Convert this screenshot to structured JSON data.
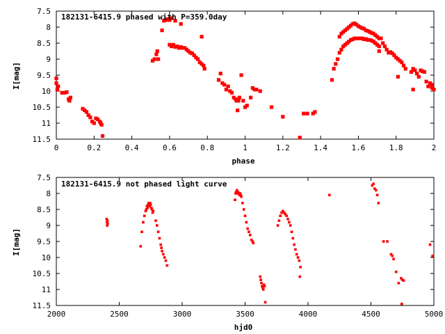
{
  "chart_data": [
    {
      "type": "scatter",
      "title": "182131-6415.9 phased with P=359.0day",
      "xlabel": "phase",
      "ylabel": "I[mag]",
      "xlim": [
        0,
        2
      ],
      "ylim": [
        11.5,
        7.5
      ],
      "y_inverted": true,
      "grid": false,
      "legend": "none",
      "marker_color": "#ff0000",
      "x_ticks": [
        "0",
        "0.2",
        "0.4",
        "0.6",
        "0.8",
        "1",
        "1.2",
        "1.4",
        "1.6",
        "1.8",
        "2"
      ],
      "y_ticks": [
        "7.5",
        "8",
        "8.5",
        "9",
        "9.5",
        "10",
        "10.5",
        "11",
        "11.5"
      ],
      "points": [
        [
          0.0,
          9.6
        ],
        [
          0.0,
          9.75
        ],
        [
          0.005,
          9.95
        ],
        [
          0.01,
          9.85
        ],
        [
          0.03,
          10.05
        ],
        [
          0.045,
          10.05
        ],
        [
          0.055,
          10.03
        ],
        [
          0.065,
          10.25
        ],
        [
          0.07,
          10.3
        ],
        [
          0.075,
          10.2
        ],
        [
          0.14,
          10.55
        ],
        [
          0.15,
          10.6
        ],
        [
          0.16,
          10.65
        ],
        [
          0.17,
          10.75
        ],
        [
          0.18,
          10.82
        ],
        [
          0.19,
          10.95
        ],
        [
          0.2,
          11.0
        ],
        [
          0.21,
          10.85
        ],
        [
          0.22,
          10.88
        ],
        [
          0.23,
          10.95
        ],
        [
          0.235,
          11.0
        ],
        [
          0.24,
          11.05
        ],
        [
          0.245,
          11.4
        ],
        [
          0.51,
          9.05
        ],
        [
          0.52,
          9.0
        ],
        [
          0.53,
          8.85
        ],
        [
          0.535,
          8.75
        ],
        [
          0.54,
          9.0
        ],
        [
          0.56,
          8.1
        ],
        [
          0.57,
          7.8
        ],
        [
          0.58,
          7.78
        ],
        [
          0.59,
          7.75
        ],
        [
          0.6,
          7.78
        ],
        [
          0.61,
          7.72
        ],
        [
          0.63,
          7.8
        ],
        [
          0.6,
          8.55
        ],
        [
          0.61,
          8.6
        ],
        [
          0.62,
          8.55
        ],
        [
          0.63,
          8.62
        ],
        [
          0.64,
          8.6
        ],
        [
          0.65,
          8.65
        ],
        [
          0.66,
          8.62
        ],
        [
          0.67,
          8.65
        ],
        [
          0.68,
          8.65
        ],
        [
          0.69,
          8.7
        ],
        [
          0.7,
          8.75
        ],
        [
          0.71,
          8.8
        ],
        [
          0.72,
          8.82
        ],
        [
          0.73,
          8.88
        ],
        [
          0.74,
          8.95
        ],
        [
          0.75,
          9.0
        ],
        [
          0.76,
          9.1
        ],
        [
          0.77,
          9.15
        ],
        [
          0.78,
          9.2
        ],
        [
          0.785,
          9.3
        ],
        [
          0.77,
          8.3
        ],
        [
          0.66,
          7.9
        ],
        [
          0.86,
          9.65
        ],
        [
          0.87,
          9.45
        ],
        [
          0.88,
          9.75
        ],
        [
          0.89,
          9.8
        ],
        [
          0.9,
          9.95
        ],
        [
          0.91,
          9.85
        ],
        [
          0.92,
          10.0
        ],
        [
          0.93,
          10.05
        ],
        [
          0.94,
          10.2
        ],
        [
          0.95,
          10.25
        ],
        [
          0.955,
          10.3
        ],
        [
          0.96,
          10.6
        ],
        [
          0.965,
          10.3
        ],
        [
          0.97,
          10.2
        ],
        [
          0.98,
          9.5
        ],
        [
          0.99,
          10.3
        ],
        [
          1.0,
          10.5
        ],
        [
          1.01,
          10.45
        ],
        [
          1.03,
          10.2
        ],
        [
          1.04,
          9.9
        ],
        [
          1.05,
          9.95
        ],
        [
          1.06,
          9.95
        ],
        [
          1.08,
          10.0
        ],
        [
          1.14,
          10.5
        ],
        [
          1.2,
          10.8
        ],
        [
          1.29,
          11.45
        ],
        [
          1.31,
          10.7
        ],
        [
          1.33,
          10.7
        ],
        [
          1.36,
          10.7
        ],
        [
          1.37,
          10.65
        ],
        [
          1.46,
          9.65
        ],
        [
          1.47,
          9.3
        ],
        [
          1.48,
          9.15
        ],
        [
          1.49,
          9.0
        ],
        [
          1.5,
          8.8
        ],
        [
          1.51,
          8.7
        ],
        [
          1.52,
          8.6
        ],
        [
          1.53,
          8.55
        ],
        [
          1.54,
          8.5
        ],
        [
          1.55,
          8.45
        ],
        [
          1.56,
          8.4
        ],
        [
          1.57,
          8.38
        ],
        [
          1.58,
          8.35
        ],
        [
          1.59,
          8.35
        ],
        [
          1.6,
          8.35
        ],
        [
          1.61,
          8.35
        ],
        [
          1.62,
          8.35
        ],
        [
          1.63,
          8.38
        ],
        [
          1.64,
          8.37
        ],
        [
          1.65,
          8.4
        ],
        [
          1.66,
          8.4
        ],
        [
          1.67,
          8.42
        ],
        [
          1.68,
          8.45
        ],
        [
          1.69,
          8.5
        ],
        [
          1.7,
          8.55
        ],
        [
          1.71,
          8.6
        ],
        [
          1.5,
          8.3
        ],
        [
          1.51,
          8.2
        ],
        [
          1.52,
          8.15
        ],
        [
          1.53,
          8.1
        ],
        [
          1.54,
          8.05
        ],
        [
          1.55,
          8.0
        ],
        [
          1.56,
          7.95
        ],
        [
          1.57,
          7.9
        ],
        [
          1.58,
          7.88
        ],
        [
          1.59,
          7.92
        ],
        [
          1.6,
          7.97
        ],
        [
          1.61,
          8.0
        ],
        [
          1.62,
          8.03
        ],
        [
          1.63,
          8.05
        ],
        [
          1.64,
          8.1
        ],
        [
          1.65,
          8.12
        ],
        [
          1.66,
          8.15
        ],
        [
          1.67,
          8.18
        ],
        [
          1.68,
          8.2
        ],
        [
          1.69,
          8.25
        ],
        [
          1.7,
          8.3
        ],
        [
          1.71,
          8.35
        ],
        [
          1.72,
          8.35
        ],
        [
          1.73,
          8.5
        ],
        [
          1.74,
          8.6
        ],
        [
          1.75,
          8.7
        ],
        [
          1.76,
          8.8
        ],
        [
          1.77,
          8.78
        ],
        [
          1.78,
          8.82
        ],
        [
          1.79,
          8.88
        ],
        [
          1.8,
          8.95
        ],
        [
          1.81,
          9.0
        ],
        [
          1.82,
          9.05
        ],
        [
          1.83,
          9.1
        ],
        [
          1.84,
          9.2
        ],
        [
          1.85,
          9.3
        ],
        [
          1.81,
          9.55
        ],
        [
          1.88,
          9.4
        ],
        [
          1.89,
          9.3
        ],
        [
          1.9,
          9.35
        ],
        [
          1.91,
          9.45
        ],
        [
          1.92,
          9.55
        ],
        [
          1.93,
          9.35
        ],
        [
          1.94,
          9.38
        ],
        [
          1.95,
          9.4
        ],
        [
          1.96,
          9.7
        ],
        [
          1.97,
          9.85
        ],
        [
          1.98,
          9.75
        ],
        [
          1.99,
          9.8
        ],
        [
          2.0,
          9.95
        ],
        [
          1.99,
          9.9
        ],
        [
          1.89,
          9.95
        ],
        [
          1.71,
          8.75
        ]
      ]
    },
    {
      "type": "scatter",
      "title": "182131-6415.9 not phased light curve",
      "xlabel": "hjd0",
      "ylabel": "I[mag]",
      "xlim": [
        2000,
        5000
      ],
      "ylim": [
        11.5,
        7.5
      ],
      "y_inverted": true,
      "grid": false,
      "legend": "none",
      "marker_color": "#ff0000",
      "x_ticks": [
        "2000",
        "2500",
        "3000",
        "3500",
        "4000",
        "4500",
        "5000"
      ],
      "y_ticks": [
        "7.5",
        "8",
        "8.5",
        "9",
        "9.5",
        "10",
        "10.5",
        "11",
        "11.5"
      ],
      "points": [
        [
          2400,
          8.8
        ],
        [
          2402,
          8.9
        ],
        [
          2404,
          9.0
        ],
        [
          2406,
          8.85
        ],
        [
          2408,
          8.95
        ],
        [
          2670,
          9.65
        ],
        [
          2680,
          9.2
        ],
        [
          2690,
          8.9
        ],
        [
          2700,
          8.7
        ],
        [
          2710,
          8.55
        ],
        [
          2715,
          8.5
        ],
        [
          2720,
          8.4
        ],
        [
          2725,
          8.45
        ],
        [
          2730,
          8.35
        ],
        [
          2735,
          8.3
        ],
        [
          2740,
          8.4
        ],
        [
          2745,
          8.3
        ],
        [
          2750,
          8.35
        ],
        [
          2755,
          8.45
        ],
        [
          2760,
          8.5
        ],
        [
          2765,
          8.6
        ],
        [
          2770,
          8.55
        ],
        [
          2790,
          8.85
        ],
        [
          2800,
          9.0
        ],
        [
          2810,
          9.2
        ],
        [
          2820,
          9.4
        ],
        [
          2830,
          9.6
        ],
        [
          2835,
          9.7
        ],
        [
          2840,
          9.8
        ],
        [
          2850,
          9.9
        ],
        [
          2860,
          10.0
        ],
        [
          2870,
          10.1
        ],
        [
          2880,
          10.25
        ],
        [
          3420,
          8.2
        ],
        [
          3425,
          8.0
        ],
        [
          3430,
          7.95
        ],
        [
          3435,
          7.9
        ],
        [
          3440,
          7.95
        ],
        [
          3445,
          8.0
        ],
        [
          3450,
          7.98
        ],
        [
          3455,
          8.05
        ],
        [
          3460,
          8.0
        ],
        [
          3465,
          8.05
        ],
        [
          3470,
          8.1
        ],
        [
          3480,
          8.3
        ],
        [
          3490,
          8.5
        ],
        [
          3500,
          8.7
        ],
        [
          3510,
          8.9
        ],
        [
          3520,
          9.1
        ],
        [
          3530,
          9.2
        ],
        [
          3540,
          9.3
        ],
        [
          3550,
          9.45
        ],
        [
          3560,
          9.5
        ],
        [
          3565,
          9.55
        ],
        [
          3620,
          10.6
        ],
        [
          3625,
          10.7
        ],
        [
          3630,
          10.8
        ],
        [
          3635,
          10.9
        ],
        [
          3640,
          10.95
        ],
        [
          3645,
          11.0
        ],
        [
          3650,
          10.85
        ],
        [
          3655,
          10.9
        ],
        [
          3660,
          11.4
        ],
        [
          3760,
          9.0
        ],
        [
          3770,
          8.85
        ],
        [
          3780,
          8.7
        ],
        [
          3790,
          8.6
        ],
        [
          3800,
          8.55
        ],
        [
          3810,
          8.6
        ],
        [
          3820,
          8.65
        ],
        [
          3830,
          8.7
        ],
        [
          3840,
          8.8
        ],
        [
          3850,
          8.9
        ],
        [
          3860,
          9.0
        ],
        [
          3870,
          9.2
        ],
        [
          3880,
          9.4
        ],
        [
          3890,
          9.6
        ],
        [
          3900,
          9.75
        ],
        [
          3910,
          9.9
        ],
        [
          3920,
          10.0
        ],
        [
          3930,
          10.1
        ],
        [
          3940,
          10.3
        ],
        [
          3935,
          10.6
        ],
        [
          4170,
          8.05
        ],
        [
          4510,
          7.75
        ],
        [
          4520,
          7.7
        ],
        [
          4530,
          7.85
        ],
        [
          4540,
          7.9
        ],
        [
          4550,
          8.05
        ],
        [
          4560,
          8.3
        ],
        [
          4600,
          9.5
        ],
        [
          4630,
          9.5
        ],
        [
          4660,
          9.9
        ],
        [
          4670,
          9.95
        ],
        [
          4680,
          10.05
        ],
        [
          4700,
          10.45
        ],
        [
          4720,
          10.8
        ],
        [
          4740,
          10.65
        ],
        [
          4750,
          10.7
        ],
        [
          4760,
          10.72
        ],
        [
          4745,
          11.45
        ],
        [
          4970,
          9.6
        ],
        [
          4990,
          9.95
        ]
      ]
    }
  ]
}
